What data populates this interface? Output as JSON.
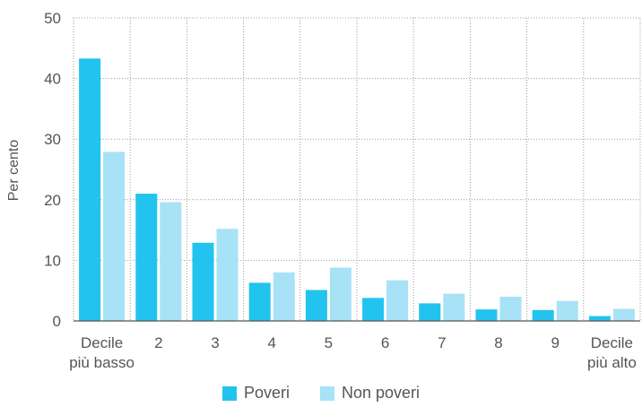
{
  "chart_data": {
    "type": "bar",
    "ylabel": "Per cento",
    "ylim": [
      0,
      50
    ],
    "yticks": [
      0,
      10,
      20,
      30,
      40,
      50
    ],
    "grid": true,
    "legend_position": "bottom",
    "categories": [
      [
        "Decile",
        "più basso"
      ],
      [
        "2"
      ],
      [
        "3"
      ],
      [
        "4"
      ],
      [
        "5"
      ],
      [
        "6"
      ],
      [
        "7"
      ],
      [
        "8"
      ],
      [
        "9"
      ],
      [
        "Decile",
        "più alto"
      ]
    ],
    "series": [
      {
        "name": "Poveri",
        "color": "#22c3ee",
        "values": [
          43.3,
          21.0,
          12.9,
          6.3,
          5.1,
          3.8,
          2.9,
          1.9,
          1.8,
          0.8
        ]
      },
      {
        "name": "Non poveri",
        "color": "#a8e2f7",
        "values": [
          27.9,
          19.6,
          15.2,
          8.0,
          8.8,
          6.7,
          4.5,
          4.0,
          3.3,
          2.0
        ]
      }
    ]
  }
}
